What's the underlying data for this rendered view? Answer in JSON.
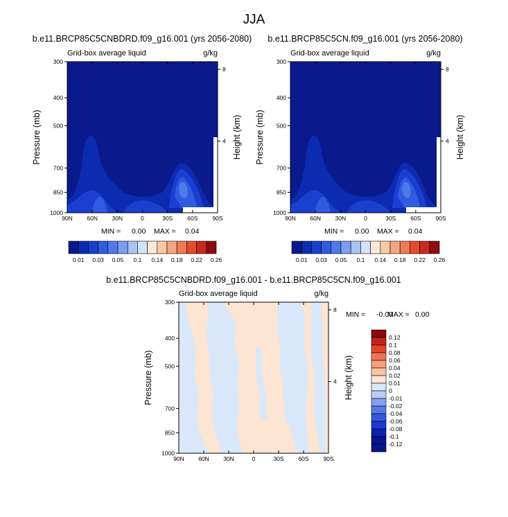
{
  "figure": {
    "title": "JJA"
  },
  "colors": {
    "abs_scale": [
      "#0a1a8c",
      "#0c2bb0",
      "#1a3fd0",
      "#2e5be0",
      "#4f7ae8",
      "#7d9ef0",
      "#aac2f5",
      "#d6e2fa",
      "#fde8d6",
      "#f8c9a8",
      "#f4a582",
      "#ef7a56",
      "#e54b2c",
      "#c92a1e",
      "#8c0d0d"
    ],
    "diff_scale": [
      "#08148c",
      "#0c22b0",
      "#1c3ad0",
      "#3258e0",
      "#5679e8",
      "#85a0ef",
      "#b8ccf5",
      "#d9e8fb",
      "#fde5d3",
      "#f8c5a4",
      "#f5a07f",
      "#ef7552",
      "#e2462a",
      "#c52319",
      "#8b0a0a"
    ]
  },
  "chart_data": [
    {
      "type": "heatmap",
      "title": "b.e11.BRCP85C5CNBDRD.f09_g16.001 (yrs 2056-2080)",
      "left_label": "Grid-box average liquid",
      "right_label": "g/kg",
      "xlabel": "",
      "ylabel": "Pressure (mb)",
      "y2label": "Height (km)",
      "x_ticks": [
        "90N",
        "60N",
        "30N",
        "0",
        "30S",
        "60S",
        "90S"
      ],
      "y_ticks": [
        300,
        400,
        500,
        700,
        850,
        1000
      ],
      "y2_ticks": [
        8,
        4
      ],
      "ylim": [
        1000,
        300
      ],
      "stats": {
        "min_label": "MIN =",
        "min": "0.00",
        "max_label": "MAX =",
        "max": "0.04"
      },
      "colorbar": {
        "orientation": "horizontal",
        "labels": [
          "0.01",
          "0.03",
          "0.05",
          "0.1",
          "0.14",
          "0.18",
          "0.22",
          "0.26"
        ]
      }
    },
    {
      "type": "heatmap",
      "title": "b.e11.BRCP85C5CN.f09_g16.001 (yrs 2056-2080)",
      "left_label": "Grid-box average liquid",
      "right_label": "g/kg",
      "xlabel": "",
      "ylabel": "Pressure (mb)",
      "y2label": "Height (km)",
      "x_ticks": [
        "90N",
        "60N",
        "30N",
        "0",
        "30S",
        "60S",
        "90S"
      ],
      "y_ticks": [
        300,
        400,
        500,
        700,
        850,
        1000
      ],
      "y2_ticks": [
        8,
        4
      ],
      "ylim": [
        1000,
        300
      ],
      "stats": {
        "min_label": "MIN =",
        "min": "0.00",
        "max_label": "MAX =",
        "max": "0.04"
      },
      "colorbar": {
        "orientation": "horizontal",
        "labels": [
          "0.01",
          "0.03",
          "0.05",
          "0.1",
          "0.14",
          "0.18",
          "0.22",
          "0.26"
        ]
      }
    },
    {
      "type": "heatmap",
      "title": "b.e11.BRCP85C5CNBDRD.f09_g16.001 - b.e11.BRCP85C5CN.f09_g16.001",
      "left_label": "Grid-box average liquid",
      "right_label": "g/kg",
      "xlabel": "",
      "ylabel": "Pressure (mb)",
      "y2label": "Height (km)",
      "x_ticks": [
        "90N",
        "60N",
        "30N",
        "0",
        "30S",
        "60S",
        "90S"
      ],
      "y_ticks": [
        300,
        400,
        500,
        700,
        850,
        1000
      ],
      "y2_ticks": [
        8,
        4
      ],
      "ylim": [
        1000,
        300
      ],
      "stats": {
        "min_label": "MIN =",
        "min": "-0.00",
        "max_label": "MAX =",
        "max": "0.00"
      },
      "colorbar": {
        "orientation": "vertical",
        "labels": [
          "0.12",
          "0.1",
          "0.08",
          "0.06",
          "0.04",
          "0.02",
          "0.01",
          "0",
          "-0.01",
          "-0.02",
          "-0.04",
          "-0.06",
          "-0.08",
          "-0.1",
          "-0.12"
        ]
      }
    }
  ]
}
